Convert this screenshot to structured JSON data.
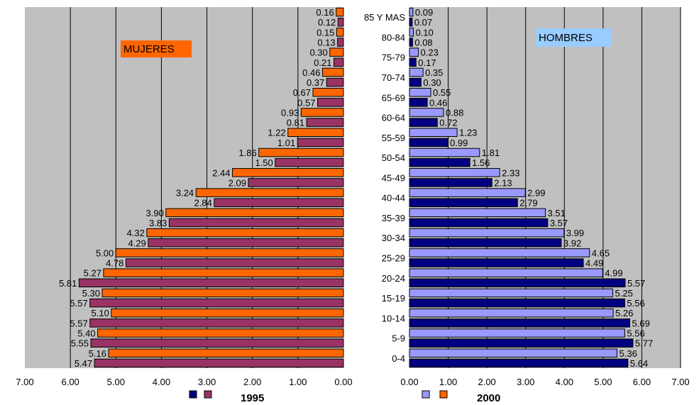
{
  "chart_data": [
    {
      "type": "bar",
      "orientation": "horizontal",
      "panel_label": "MUJERES",
      "legend_label": "1995",
      "grid": true,
      "xlim": [
        0,
        7
      ],
      "x_tick_labels": [
        "7.00",
        "6.00",
        "5.00",
        "4.00",
        "3.00",
        "2.00",
        "1.00",
        "0.00"
      ],
      "colors": {
        "series_a": "#ff6600",
        "series_b": "#993366",
        "panel_bg": "#c0c0c0",
        "label_bg": "#ff6600"
      },
      "bars": [
        {
          "value": 0.16,
          "label": "0.16",
          "series": "a"
        },
        {
          "value": 0.12,
          "label": "0.12",
          "series": "b"
        },
        {
          "value": 0.15,
          "label": "0.15",
          "series": "a"
        },
        {
          "value": 0.13,
          "label": "0.13",
          "series": "b"
        },
        {
          "value": 0.3,
          "label": "0.30",
          "series": "a"
        },
        {
          "value": 0.21,
          "label": "0.21",
          "series": "b"
        },
        {
          "value": 0.46,
          "label": "0.46",
          "series": "a"
        },
        {
          "value": 0.37,
          "label": "0.37",
          "series": "b"
        },
        {
          "value": 0.67,
          "label": "0.67",
          "series": "a"
        },
        {
          "value": 0.57,
          "label": "0.57",
          "series": "b"
        },
        {
          "value": 0.93,
          "label": "0.93",
          "series": "a"
        },
        {
          "value": 0.81,
          "label": "0.81",
          "series": "b"
        },
        {
          "value": 1.22,
          "label": "1.22",
          "series": "a"
        },
        {
          "value": 1.01,
          "label": "1.01",
          "series": "b"
        },
        {
          "value": 1.86,
          "label": "1.86",
          "series": "a"
        },
        {
          "value": 1.5,
          "label": "1.50",
          "series": "b"
        },
        {
          "value": 2.44,
          "label": "2.44",
          "series": "a"
        },
        {
          "value": 2.09,
          "label": "2.09",
          "series": "b"
        },
        {
          "value": 3.24,
          "label": "3.24",
          "series": "a"
        },
        {
          "value": 2.84,
          "label": "2.84",
          "series": "b"
        },
        {
          "value": 3.9,
          "label": "3.90",
          "series": "a"
        },
        {
          "value": 3.83,
          "label": "3.83",
          "series": "b"
        },
        {
          "value": 4.32,
          "label": "4.32",
          "series": "a"
        },
        {
          "value": 4.29,
          "label": "4.29",
          "series": "b"
        },
        {
          "value": 5.0,
          "label": "5.00",
          "series": "a"
        },
        {
          "value": 4.78,
          "label": "4.78",
          "series": "b"
        },
        {
          "value": 5.27,
          "label": "5.27",
          "series": "a"
        },
        {
          "value": 5.81,
          "label": "5.81",
          "series": "b"
        },
        {
          "value": 5.3,
          "label": "5.30",
          "series": "a"
        },
        {
          "value": 5.57,
          "label": "5.57",
          "series": "b"
        },
        {
          "value": 5.1,
          "label": "5.10",
          "series": "a"
        },
        {
          "value": 5.57,
          "label": "5.57",
          "series": "b"
        },
        {
          "value": 5.4,
          "label": "5.40",
          "series": "a"
        },
        {
          "value": 5.55,
          "label": "5.55",
          "series": "b"
        },
        {
          "value": 5.16,
          "label": "5.16",
          "series": "a"
        },
        {
          "value": 5.47,
          "label": "5.47",
          "series": "b"
        }
      ]
    },
    {
      "type": "bar",
      "orientation": "horizontal",
      "panel_label": "HOMBRES",
      "legend_label": "2000",
      "grid": true,
      "xlim": [
        0,
        7
      ],
      "x_tick_labels": [
        "0.00",
        "1.00",
        "2.00",
        "3.00",
        "4.00",
        "5.00",
        "6.00",
        "7.00"
      ],
      "colors": {
        "series_a": "#9999ff",
        "series_b": "#000080",
        "panel_bg": "#c0c0c0",
        "label_bg": "#99ccff"
      },
      "categories": [
        "85 Y MAS",
        "80-84",
        "75-79",
        "70-74",
        "65-69",
        "60-64",
        "55-59",
        "50-54",
        "45-49",
        "40-44",
        "35-39",
        "30-34",
        "25-29",
        "20-24",
        "15-19",
        "10-14",
        "5-9",
        "0-4"
      ],
      "bars": [
        {
          "value": 0.09,
          "label": "0.09",
          "series": "a"
        },
        {
          "value": 0.07,
          "label": "0.07",
          "series": "b"
        },
        {
          "value": 0.1,
          "label": "0.10",
          "series": "a"
        },
        {
          "value": 0.08,
          "label": "0.08",
          "series": "b"
        },
        {
          "value": 0.23,
          "label": "0.23",
          "series": "a"
        },
        {
          "value": 0.17,
          "label": "0.17",
          "series": "b"
        },
        {
          "value": 0.35,
          "label": "0.35",
          "series": "a"
        },
        {
          "value": 0.3,
          "label": "0.30",
          "series": "b"
        },
        {
          "value": 0.55,
          "label": "0.55",
          "series": "a"
        },
        {
          "value": 0.46,
          "label": "0.46",
          "series": "b"
        },
        {
          "value": 0.88,
          "label": "0.88",
          "series": "a"
        },
        {
          "value": 0.72,
          "label": "0.72",
          "series": "b"
        },
        {
          "value": 1.23,
          "label": "1.23",
          "series": "a"
        },
        {
          "value": 0.99,
          "label": "0.99",
          "series": "b"
        },
        {
          "value": 1.81,
          "label": "1.81",
          "series": "a"
        },
        {
          "value": 1.56,
          "label": "1.56",
          "series": "b"
        },
        {
          "value": 2.33,
          "label": "2.33",
          "series": "a"
        },
        {
          "value": 2.13,
          "label": "2.13",
          "series": "b"
        },
        {
          "value": 2.99,
          "label": "2.99",
          "series": "a"
        },
        {
          "value": 2.79,
          "label": "2.79",
          "series": "b"
        },
        {
          "value": 3.51,
          "label": "3.51",
          "series": "a"
        },
        {
          "value": 3.57,
          "label": "3.57",
          "series": "b"
        },
        {
          "value": 3.99,
          "label": "3.99",
          "series": "a"
        },
        {
          "value": 3.92,
          "label": "3.92",
          "series": "b"
        },
        {
          "value": 4.65,
          "label": "4.65",
          "series": "a"
        },
        {
          "value": 4.49,
          "label": "4.49",
          "series": "b"
        },
        {
          "value": 4.99,
          "label": "4.99",
          "series": "a"
        },
        {
          "value": 5.57,
          "label": "5.57",
          "series": "b"
        },
        {
          "value": 5.25,
          "label": "5.25",
          "series": "a"
        },
        {
          "value": 5.56,
          "label": "5.56",
          "series": "b"
        },
        {
          "value": 5.26,
          "label": "5.26",
          "series": "a"
        },
        {
          "value": 5.69,
          "label": "5.69",
          "series": "b"
        },
        {
          "value": 5.56,
          "label": "5.56",
          "series": "a"
        },
        {
          "value": 5.77,
          "label": "5.77",
          "series": "b"
        },
        {
          "value": 5.36,
          "label": "5.36",
          "series": "a"
        },
        {
          "value": 5.64,
          "label": "5.64",
          "series": "b"
        }
      ]
    }
  ]
}
